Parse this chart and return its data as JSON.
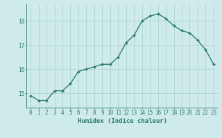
{
  "x": [
    0,
    1,
    2,
    3,
    4,
    5,
    6,
    7,
    8,
    9,
    10,
    11,
    12,
    13,
    14,
    15,
    16,
    17,
    18,
    19,
    20,
    21,
    22,
    23
  ],
  "y": [
    14.9,
    14.7,
    14.7,
    15.1,
    15.1,
    15.4,
    15.9,
    16.0,
    16.1,
    16.2,
    16.2,
    16.5,
    17.1,
    17.4,
    18.0,
    18.2,
    18.3,
    18.1,
    17.8,
    17.6,
    17.5,
    17.2,
    16.8,
    16.2
  ],
  "xlabel": "Humidex (Indice chaleur)",
  "ylabel": "",
  "ylim": [
    14.4,
    18.7
  ],
  "xlim": [
    -0.5,
    23.5
  ],
  "yticks": [
    15,
    16,
    17,
    18
  ],
  "xticks": [
    0,
    1,
    2,
    3,
    4,
    5,
    6,
    7,
    8,
    9,
    10,
    11,
    12,
    13,
    14,
    15,
    16,
    17,
    18,
    19,
    20,
    21,
    22,
    23
  ],
  "line_color": "#2e7d6b",
  "marker_color": "#2e7d6b",
  "bg_color": "#ceeaea",
  "grid_color": "#aed4d4",
  "axis_color": "#2e7d6b",
  "xlabel_fontsize": 6.5,
  "tick_fontsize": 5.5,
  "linewidth": 1.0,
  "markersize": 2.0
}
